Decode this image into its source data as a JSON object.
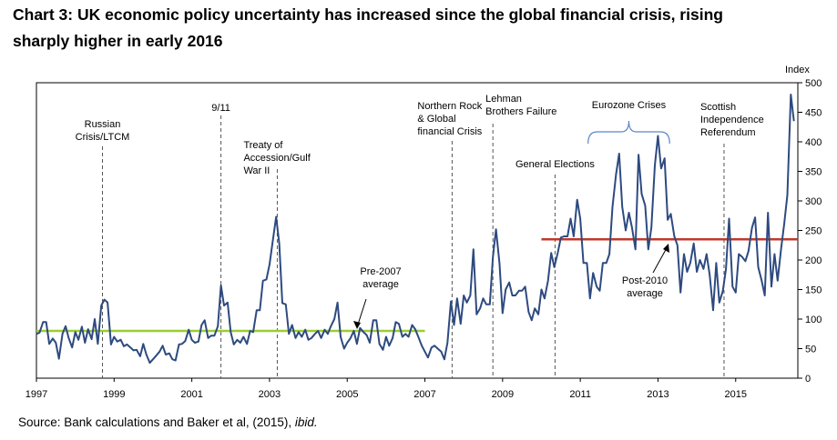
{
  "title_line1": "Chart 3: UK economic policy uncertainty has increased since the global financial crisis, rising",
  "title_line2": "sharply higher in early 2016",
  "source_text": "Source: Bank calculations and Baker et al, (2015), ",
  "source_italic": "ibid.",
  "chart_data": {
    "type": "line",
    "ylabel": "Index",
    "ylim": [
      0,
      500
    ],
    "yticks": [
      0,
      50,
      100,
      150,
      200,
      250,
      300,
      350,
      400,
      450,
      500
    ],
    "xlim": [
      1997.0,
      2016.6
    ],
    "xticks": [
      "1997",
      "1999",
      "2001",
      "2003",
      "2005",
      "2007",
      "2009",
      "2011",
      "2013",
      "2015"
    ],
    "grid": false,
    "colors": {
      "series": "#2e4a7f",
      "pre2007_avg": "#9acd32",
      "post2010_avg": "#c0392b",
      "frame": "#000000",
      "events": "#555555"
    },
    "series": [
      {
        "values": [
          [
            1997.0,
            75
          ],
          [
            1997.08,
            77
          ],
          [
            1997.17,
            95
          ],
          [
            1997.25,
            95
          ],
          [
            1997.33,
            58
          ],
          [
            1997.42,
            67
          ],
          [
            1997.5,
            60
          ],
          [
            1997.58,
            33
          ],
          [
            1997.67,
            75
          ],
          [
            1997.75,
            88
          ],
          [
            1997.83,
            68
          ],
          [
            1997.92,
            52
          ],
          [
            1998.0,
            78
          ],
          [
            1998.08,
            65
          ],
          [
            1998.17,
            87
          ],
          [
            1998.25,
            60
          ],
          [
            1998.33,
            83
          ],
          [
            1998.42,
            66
          ],
          [
            1998.5,
            100
          ],
          [
            1998.58,
            58
          ],
          [
            1998.67,
            123
          ],
          [
            1998.75,
            133
          ],
          [
            1998.83,
            128
          ],
          [
            1998.92,
            57
          ],
          [
            1999.0,
            70
          ],
          [
            1999.08,
            62
          ],
          [
            1999.17,
            65
          ],
          [
            1999.25,
            54
          ],
          [
            1999.33,
            57
          ],
          [
            1999.42,
            52
          ],
          [
            1999.5,
            47
          ],
          [
            1999.58,
            48
          ],
          [
            1999.67,
            37
          ],
          [
            1999.75,
            58
          ],
          [
            1999.83,
            40
          ],
          [
            1999.92,
            26
          ],
          [
            2000.0,
            32
          ],
          [
            2000.08,
            38
          ],
          [
            2000.17,
            45
          ],
          [
            2000.25,
            55
          ],
          [
            2000.33,
            40
          ],
          [
            2000.42,
            42
          ],
          [
            2000.5,
            32
          ],
          [
            2000.58,
            30
          ],
          [
            2000.67,
            57
          ],
          [
            2000.75,
            58
          ],
          [
            2000.83,
            63
          ],
          [
            2000.92,
            82
          ],
          [
            2001.0,
            65
          ],
          [
            2001.08,
            60
          ],
          [
            2001.17,
            62
          ],
          [
            2001.25,
            90
          ],
          [
            2001.33,
            98
          ],
          [
            2001.42,
            68
          ],
          [
            2001.5,
            72
          ],
          [
            2001.58,
            72
          ],
          [
            2001.67,
            88
          ],
          [
            2001.75,
            157
          ],
          [
            2001.83,
            123
          ],
          [
            2001.92,
            128
          ],
          [
            2002.0,
            78
          ],
          [
            2002.08,
            57
          ],
          [
            2002.17,
            65
          ],
          [
            2002.25,
            60
          ],
          [
            2002.33,
            70
          ],
          [
            2002.42,
            58
          ],
          [
            2002.5,
            80
          ],
          [
            2002.58,
            78
          ],
          [
            2002.67,
            115
          ],
          [
            2002.75,
            115
          ],
          [
            2002.83,
            165
          ],
          [
            2002.92,
            167
          ],
          [
            2003.0,
            192
          ],
          [
            2003.08,
            230
          ],
          [
            2003.17,
            273
          ],
          [
            2003.25,
            228
          ],
          [
            2003.33,
            127
          ],
          [
            2003.42,
            125
          ],
          [
            2003.5,
            75
          ],
          [
            2003.58,
            90
          ],
          [
            2003.67,
            68
          ],
          [
            2003.75,
            78
          ],
          [
            2003.83,
            70
          ],
          [
            2003.92,
            82
          ],
          [
            2004.0,
            65
          ],
          [
            2004.08,
            68
          ],
          [
            2004.17,
            75
          ],
          [
            2004.25,
            80
          ],
          [
            2004.33,
            68
          ],
          [
            2004.42,
            82
          ],
          [
            2004.5,
            75
          ],
          [
            2004.58,
            88
          ],
          [
            2004.67,
            100
          ],
          [
            2004.75,
            128
          ],
          [
            2004.83,
            70
          ],
          [
            2004.92,
            50
          ],
          [
            2005.0,
            60
          ],
          [
            2005.08,
            67
          ],
          [
            2005.17,
            80
          ],
          [
            2005.25,
            58
          ],
          [
            2005.33,
            85
          ],
          [
            2005.42,
            78
          ],
          [
            2005.5,
            73
          ],
          [
            2005.58,
            60
          ],
          [
            2005.67,
            98
          ],
          [
            2005.75,
            98
          ],
          [
            2005.83,
            58
          ],
          [
            2005.92,
            48
          ],
          [
            2006.0,
            70
          ],
          [
            2006.08,
            55
          ],
          [
            2006.17,
            68
          ],
          [
            2006.25,
            95
          ],
          [
            2006.33,
            92
          ],
          [
            2006.42,
            70
          ],
          [
            2006.5,
            75
          ],
          [
            2006.58,
            70
          ],
          [
            2006.67,
            90
          ],
          [
            2006.75,
            83
          ],
          [
            2006.83,
            70
          ],
          [
            2006.92,
            55
          ],
          [
            2007.0,
            45
          ],
          [
            2007.08,
            35
          ],
          [
            2007.17,
            52
          ],
          [
            2007.25,
            55
          ],
          [
            2007.33,
            50
          ],
          [
            2007.42,
            45
          ],
          [
            2007.5,
            32
          ],
          [
            2007.58,
            60
          ],
          [
            2007.67,
            130
          ],
          [
            2007.75,
            90
          ],
          [
            2007.83,
            135
          ],
          [
            2007.92,
            92
          ],
          [
            2008.0,
            140
          ],
          [
            2008.08,
            128
          ],
          [
            2008.17,
            140
          ],
          [
            2008.25,
            218
          ],
          [
            2008.33,
            108
          ],
          [
            2008.42,
            118
          ],
          [
            2008.5,
            135
          ],
          [
            2008.58,
            125
          ],
          [
            2008.67,
            125
          ],
          [
            2008.75,
            205
          ],
          [
            2008.83,
            252
          ],
          [
            2008.92,
            195
          ],
          [
            2009.0,
            110
          ],
          [
            2009.08,
            150
          ],
          [
            2009.17,
            162
          ],
          [
            2009.25,
            140
          ],
          [
            2009.33,
            140
          ],
          [
            2009.42,
            148
          ],
          [
            2009.5,
            148
          ],
          [
            2009.58,
            155
          ],
          [
            2009.67,
            112
          ],
          [
            2009.75,
            98
          ],
          [
            2009.83,
            118
          ],
          [
            2009.92,
            108
          ],
          [
            2010.0,
            150
          ],
          [
            2010.08,
            135
          ],
          [
            2010.17,
            165
          ],
          [
            2010.25,
            212
          ],
          [
            2010.33,
            188
          ],
          [
            2010.42,
            212
          ],
          [
            2010.5,
            238
          ],
          [
            2010.58,
            240
          ],
          [
            2010.67,
            240
          ],
          [
            2010.75,
            270
          ],
          [
            2010.83,
            240
          ],
          [
            2010.92,
            302
          ],
          [
            2011.0,
            270
          ],
          [
            2011.08,
            195
          ],
          [
            2011.17,
            195
          ],
          [
            2011.25,
            135
          ],
          [
            2011.33,
            178
          ],
          [
            2011.42,
            155
          ],
          [
            2011.5,
            148
          ],
          [
            2011.58,
            195
          ],
          [
            2011.67,
            195
          ],
          [
            2011.75,
            210
          ],
          [
            2011.83,
            290
          ],
          [
            2011.92,
            345
          ],
          [
            2012.0,
            380
          ],
          [
            2012.08,
            290
          ],
          [
            2012.17,
            250
          ],
          [
            2012.25,
            280
          ],
          [
            2012.33,
            255
          ],
          [
            2012.42,
            218
          ],
          [
            2012.5,
            378
          ],
          [
            2012.58,
            312
          ],
          [
            2012.67,
            292
          ],
          [
            2012.75,
            218
          ],
          [
            2012.83,
            255
          ],
          [
            2012.92,
            360
          ],
          [
            2013.0,
            410
          ],
          [
            2013.08,
            355
          ],
          [
            2013.17,
            372
          ],
          [
            2013.25,
            268
          ],
          [
            2013.33,
            278
          ],
          [
            2013.42,
            240
          ],
          [
            2013.5,
            225
          ],
          [
            2013.58,
            145
          ],
          [
            2013.67,
            210
          ],
          [
            2013.75,
            180
          ],
          [
            2013.83,
            195
          ],
          [
            2013.92,
            228
          ],
          [
            2014.0,
            180
          ],
          [
            2014.08,
            200
          ],
          [
            2014.17,
            185
          ],
          [
            2014.25,
            210
          ],
          [
            2014.33,
            175
          ],
          [
            2014.42,
            115
          ],
          [
            2014.5,
            195
          ],
          [
            2014.58,
            128
          ],
          [
            2014.67,
            148
          ],
          [
            2014.75,
            185
          ],
          [
            2014.83,
            270
          ],
          [
            2014.92,
            155
          ],
          [
            2015.0,
            145
          ],
          [
            2015.08,
            210
          ],
          [
            2015.17,
            205
          ],
          [
            2015.25,
            198
          ],
          [
            2015.33,
            215
          ],
          [
            2015.42,
            255
          ],
          [
            2015.5,
            272
          ],
          [
            2015.58,
            188
          ],
          [
            2015.67,
            165
          ],
          [
            2015.75,
            140
          ],
          [
            2015.83,
            280
          ],
          [
            2015.92,
            155
          ],
          [
            2016.0,
            210
          ],
          [
            2016.08,
            165
          ],
          [
            2016.17,
            220
          ],
          [
            2016.25,
            262
          ],
          [
            2016.33,
            310
          ],
          [
            2016.42,
            480
          ],
          [
            2016.5,
            435
          ]
        ]
      }
    ],
    "reference_lines": [
      {
        "label": "Pre-2007 average",
        "value": 80,
        "x_range": [
          1997.0,
          2007.0
        ]
      },
      {
        "label": "Post-2010 average",
        "value": 235,
        "x_range": [
          2010.0,
          2016.6
        ]
      }
    ],
    "annotations": [
      {
        "x": 1998.7,
        "lines": [
          "Russian",
          "Crisis/LTCM"
        ]
      },
      {
        "x": 2001.75,
        "lines": [
          "9/11"
        ]
      },
      {
        "x": 2003.2,
        "lines": [
          "Treaty of",
          "Accession/Gulf",
          "War II"
        ]
      },
      {
        "x": 2007.7,
        "lines": [
          "Northern Rock",
          "& Global",
          "financial Crisis"
        ]
      },
      {
        "x": 2008.75,
        "lines": [
          "Lehman",
          "Brothers Failure"
        ]
      },
      {
        "x": 2010.35,
        "lines": [
          "General Elections"
        ]
      },
      {
        "x": 2014.7,
        "lines": [
          "Scottish",
          "Independence",
          "Referendum"
        ]
      }
    ],
    "bracket_annotation": {
      "lines": [
        "Eurozone Crises"
      ],
      "x_range": [
        2011.2,
        2013.3
      ]
    },
    "pointer_annotations": [
      {
        "lines": [
          "Pre-2007",
          "average"
        ]
      },
      {
        "lines": [
          "Post-2010",
          "average"
        ]
      }
    ]
  }
}
